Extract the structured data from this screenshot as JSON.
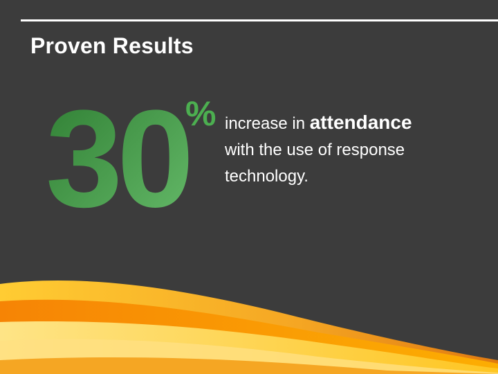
{
  "slide": {
    "title": "Proven Results",
    "stat": {
      "number": "30",
      "unit": "%",
      "line1_prefix": "increase in ",
      "line1_emphasis": "attendance",
      "rest": "with the use of response technology."
    }
  },
  "colors": {
    "background": "#3c3c3c",
    "accent_green": "#4caf50",
    "wave_orange": "#f0a020",
    "wave_yellow": "#ffd54f"
  }
}
